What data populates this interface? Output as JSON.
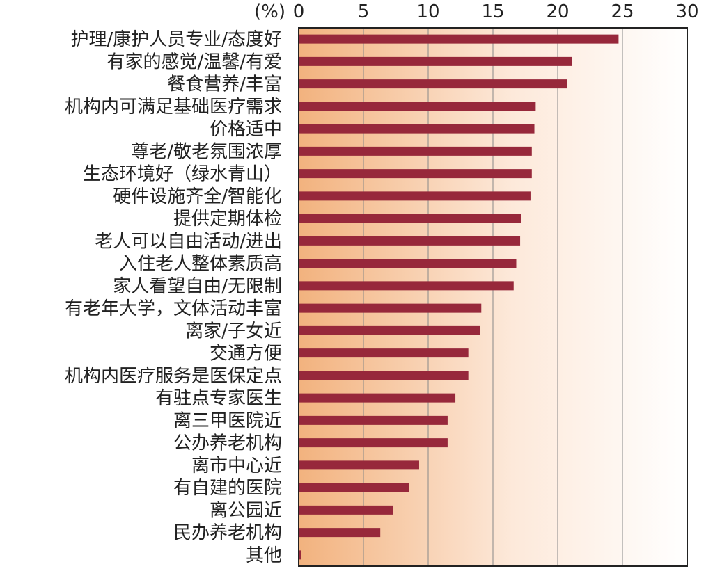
{
  "chart_data": {
    "type": "bar",
    "orientation": "horizontal",
    "unit_label": "(%)",
    "xlim": [
      0,
      30
    ],
    "xticks": [
      0,
      5,
      10,
      15,
      20,
      25,
      30
    ],
    "grid": true,
    "categories": [
      "护理/康护人员专业/态度好",
      "有家的感觉/温馨/有爱",
      "餐食营养/丰富",
      "机构内可满足基础医疗需求",
      "价格适中",
      "尊老/敬老氛围浓厚",
      "生态环境好（绿水青山）",
      "硬件设施齐全/智能化",
      "提供定期体检",
      "老人可以自由活动/进出",
      "入住老人整体素质高",
      "家人看望自由/无限制",
      "有老年大学，文体活动丰富",
      "离家/子女近",
      "交通方便",
      "机构内医疗服务是医保定点",
      "有驻点专家医生",
      "离三甲医院近",
      "公办养老机构",
      "离市中心近",
      "有自建的医院",
      "离公园近",
      "民办养老机构",
      "其他"
    ],
    "values": [
      24.7,
      21.1,
      20.7,
      18.3,
      18.2,
      18.0,
      18.0,
      17.9,
      17.2,
      17.1,
      16.8,
      16.6,
      14.1,
      14.0,
      13.1,
      13.1,
      12.1,
      11.5,
      11.5,
      9.3,
      8.5,
      7.3,
      6.3,
      0.2
    ],
    "bar_color": "#97283b",
    "background_gradient": [
      "#f2b27e",
      "#ffffff"
    ]
  }
}
